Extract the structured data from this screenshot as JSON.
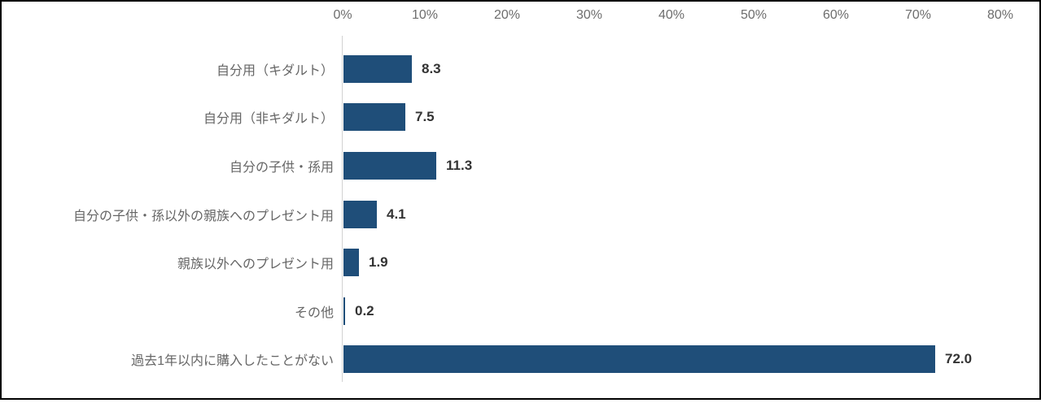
{
  "chart_data": {
    "type": "bar",
    "orientation": "horizontal",
    "title": "",
    "categories": [
      "自分用（キダルト）",
      "自分用（非キダルト）",
      "自分の子供・孫用",
      "自分の子供・孫以外の親族へのプレゼント用",
      "親族以外へのプレゼント用",
      "その他",
      "過去1年以内に購入したことがない"
    ],
    "values": [
      8.3,
      7.5,
      11.3,
      4.1,
      1.9,
      0.2,
      72.0
    ],
    "value_labels": [
      "8.3",
      "7.5",
      "11.3",
      "4.1",
      "1.9",
      "0.2",
      "72.0"
    ],
    "x_axis": {
      "position": "top",
      "min": 0,
      "max": 80,
      "tick_step": 10,
      "tick_labels": [
        "0%",
        "10%",
        "20%",
        "30%",
        "40%",
        "50%",
        "60%",
        "70%",
        "80%"
      ]
    },
    "grid": false,
    "legend": false,
    "colors": {
      "bar": "#1F4E79",
      "axis_line": "#D2D2D2",
      "tick_label": "#6D6D6D",
      "category_label": "#666666",
      "value_label": "#333333",
      "frame_border": "#000000",
      "background": "#FFFFFF"
    }
  }
}
